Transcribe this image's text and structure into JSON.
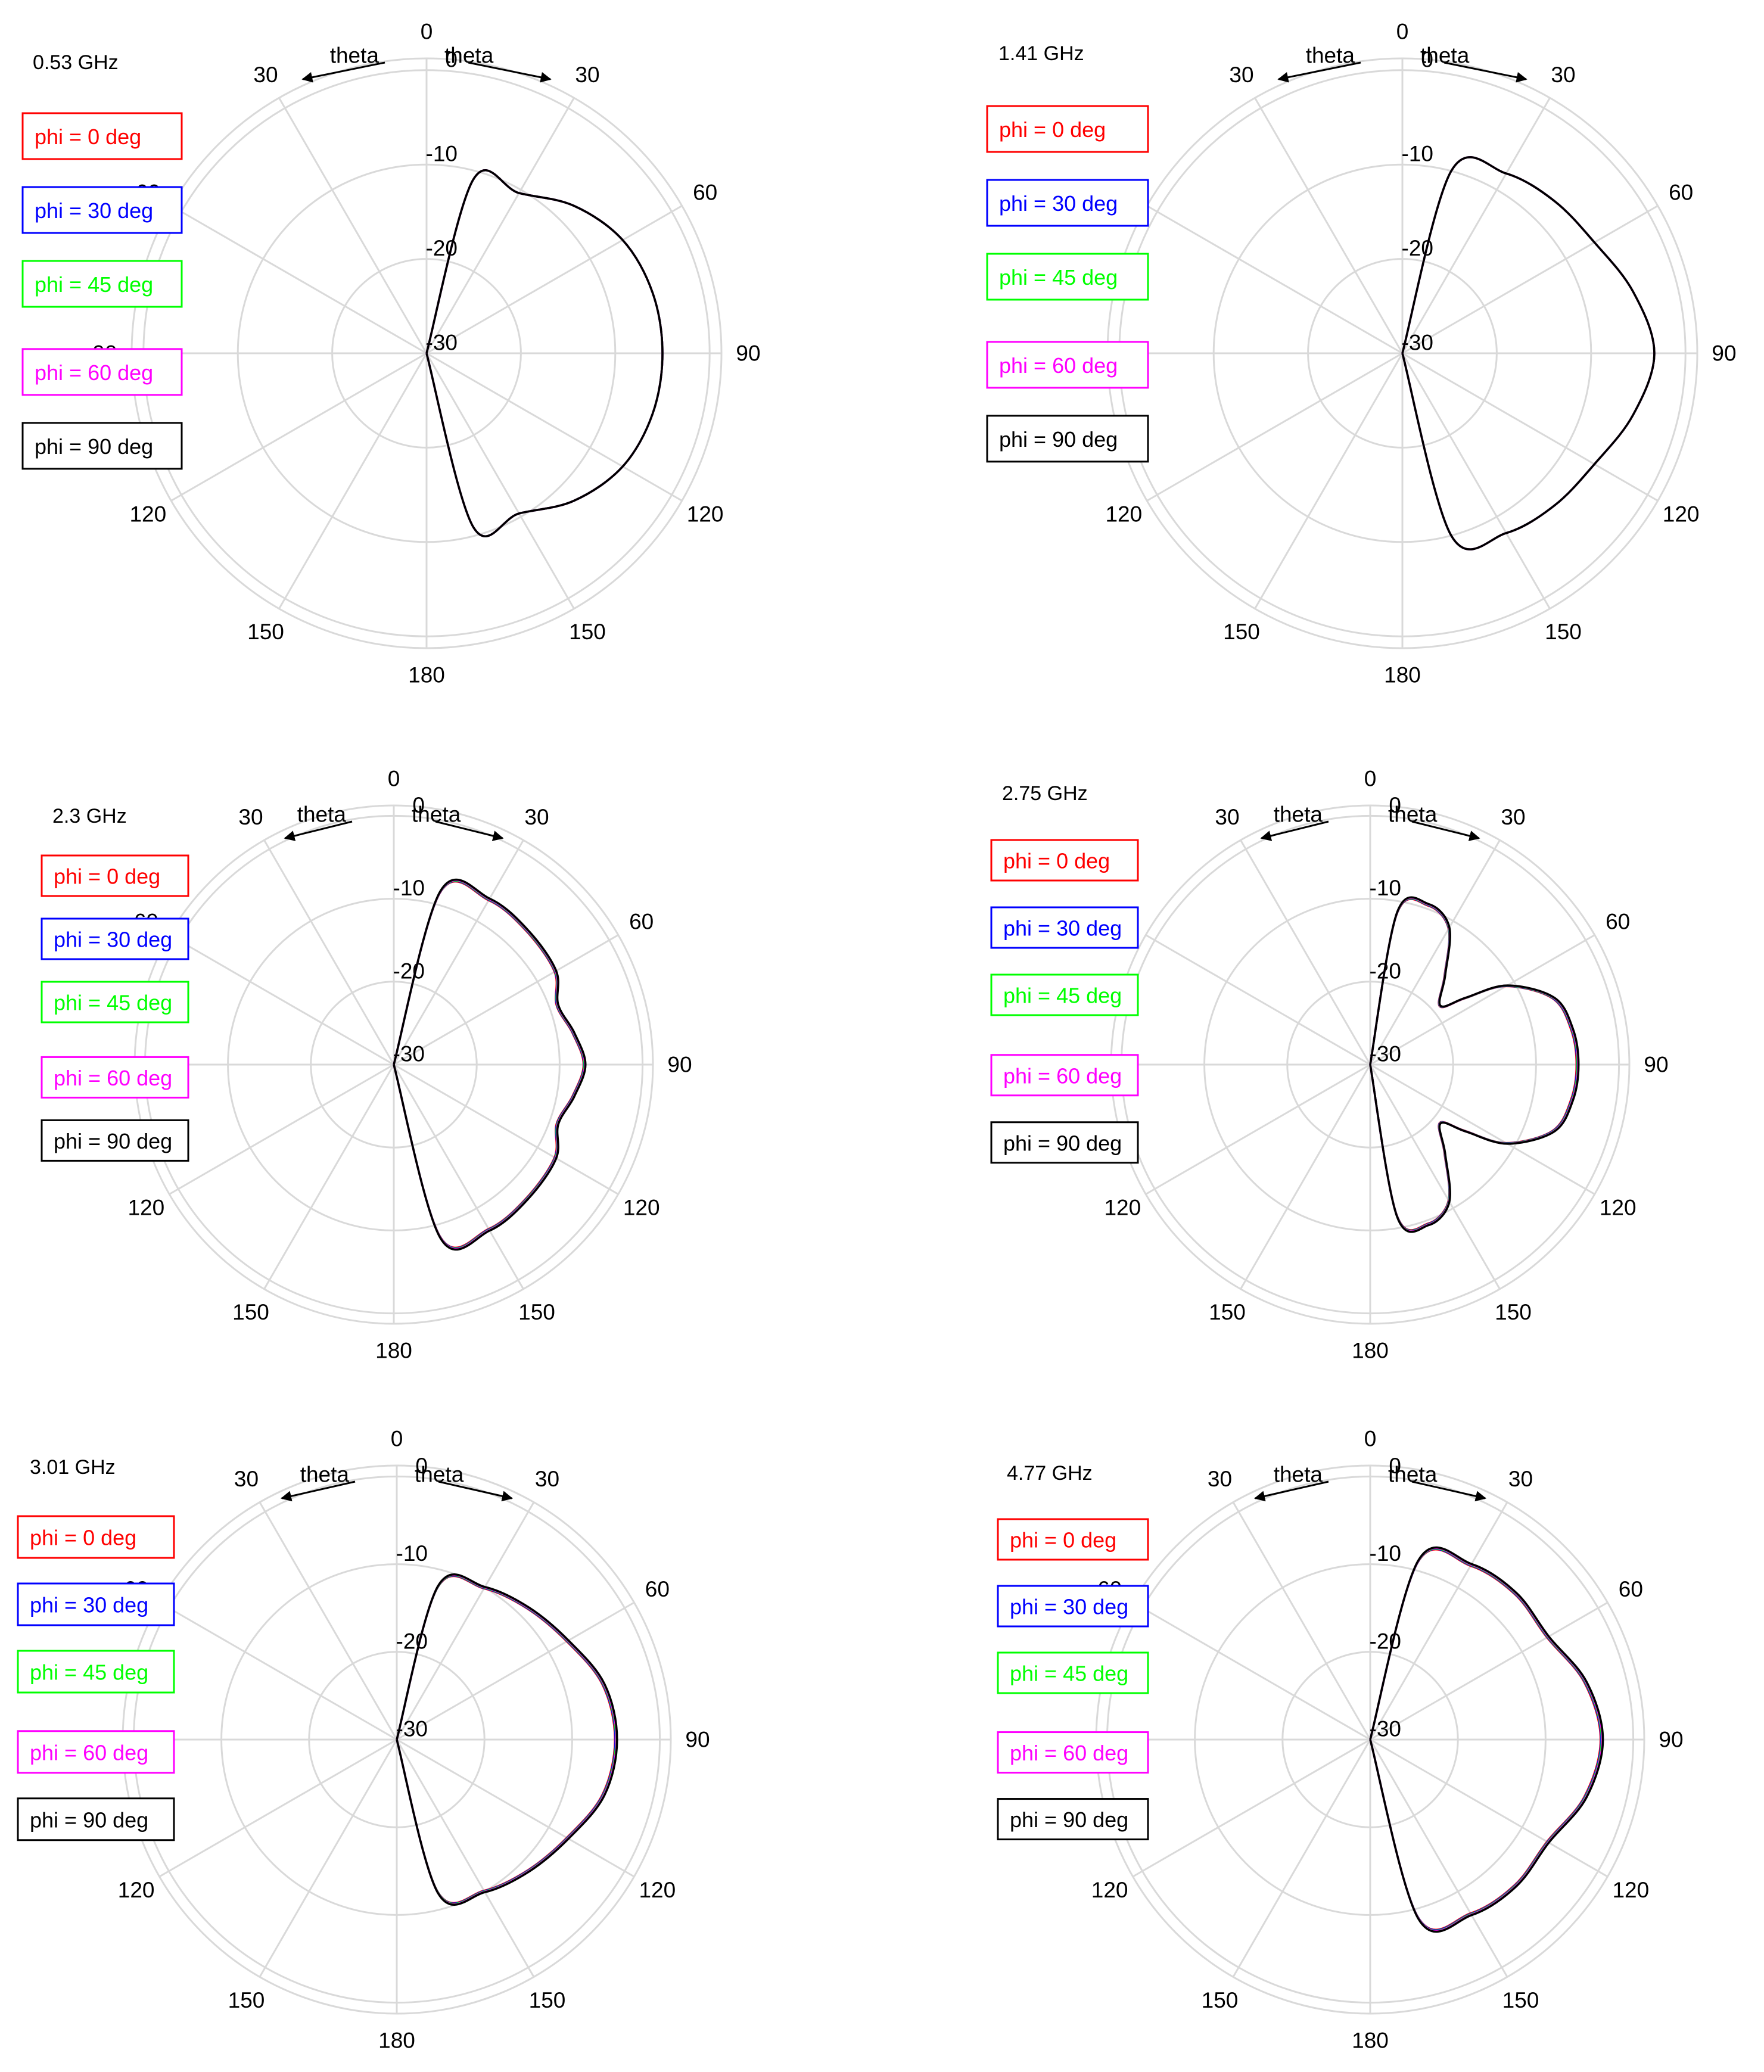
{
  "chart_data": [
    {
      "type": "polar-line",
      "title": "0.53 GHz",
      "angular_labels": [
        "0",
        "30",
        "60",
        "90",
        "120",
        "150",
        "180",
        "150",
        "120",
        "90",
        "60",
        "30"
      ],
      "radial_labels": [
        "0",
        "-10",
        "-20",
        "-30"
      ],
      "rlim": [
        -30,
        0
      ],
      "arrow_labels": [
        "theta",
        "theta"
      ],
      "grid": true,
      "legend_position": "left",
      "series": [
        {
          "name": "phi = 0  deg",
          "color": "#ff0000"
        },
        {
          "name": "phi = 30 deg",
          "color": "#0000ff"
        },
        {
          "name": "phi = 45 deg",
          "color": "#00ff00"
        },
        {
          "name": "phi = 60 deg",
          "color": "#ff00ff"
        },
        {
          "name": "phi = 90 deg",
          "color": "#000000"
        }
      ],
      "theta_deg": [
        0,
        15,
        30,
        45,
        60,
        75,
        90,
        105,
        120,
        135,
        150,
        165,
        180
      ],
      "gain_db": [
        -30.0,
        -11.0,
        -10.4,
        -7.9,
        -6.0,
        -5.2,
        -5.0,
        -5.2,
        -6.0,
        -7.9,
        -10.4,
        -11.0,
        -30.0
      ]
    },
    {
      "type": "polar-line",
      "title": "1.41 GHz",
      "angular_labels": [
        "0",
        "30",
        "60",
        "90",
        "120",
        "150",
        "180",
        "150",
        "120",
        "90",
        "60",
        "30"
      ],
      "radial_labels": [
        "0",
        "-10",
        "-20",
        "-30"
      ],
      "rlim": [
        -30,
        0
      ],
      "arrow_labels": [
        "theta",
        "theta"
      ],
      "grid": true,
      "legend_position": "left",
      "series": [
        {
          "name": "phi = 0  deg",
          "color": "#ff0000"
        },
        {
          "name": "phi = 30 deg",
          "color": "#0000ff"
        },
        {
          "name": "phi = 45 deg",
          "color": "#00ff00"
        },
        {
          "name": "phi = 60 deg",
          "color": "#ff00ff"
        },
        {
          "name": "phi = 90 deg",
          "color": "#000000"
        }
      ],
      "theta_deg": [
        0,
        15,
        30,
        45,
        60,
        75,
        90,
        105,
        120,
        135,
        150,
        165,
        180
      ],
      "gain_db": [
        -30.0,
        -10.0,
        -8.0,
        -7.2,
        -6.5,
        -4.7,
        -3.3,
        -4.7,
        -6.5,
        -7.2,
        -8.0,
        -10.0,
        -30.0
      ]
    },
    {
      "type": "polar-line",
      "title": "2.3 GHz",
      "angular_labels": [
        "0",
        "30",
        "60",
        "90",
        "120",
        "150",
        "180",
        "150",
        "120",
        "90",
        "60",
        "30"
      ],
      "radial_labels": [
        "0",
        "-10",
        "-20",
        "-30"
      ],
      "rlim": [
        -30,
        0
      ],
      "arrow_labels": [
        "theta",
        "theta"
      ],
      "grid": true,
      "legend_position": "left",
      "series": [
        {
          "name": "phi = 0  deg",
          "color": "#ff0000"
        },
        {
          "name": "phi = 30 deg",
          "color": "#0000ff"
        },
        {
          "name": "phi = 45 deg",
          "color": "#00ff00"
        },
        {
          "name": "phi = 60 deg",
          "color": "#ff00ff"
        },
        {
          "name": "phi = 90 deg",
          "color": "#000000"
        }
      ],
      "theta_deg": [
        0,
        15,
        30,
        45,
        60,
        70,
        80,
        90,
        100,
        110,
        120,
        135,
        150,
        165,
        180
      ],
      "gain_db": [
        -30.0,
        -8.5,
        -7.0,
        -7.2,
        -7.5,
        -9.0,
        -8.0,
        -7.0,
        -8.0,
        -9.0,
        -7.5,
        -7.2,
        -7.0,
        -8.5,
        -30.0
      ]
    },
    {
      "type": "polar-line",
      "title": "2.75 GHz",
      "angular_labels": [
        "0",
        "30",
        "60",
        "90",
        "120",
        "150",
        "180",
        "150",
        "120",
        "90",
        "60",
        "30"
      ],
      "radial_labels": [
        "0",
        "-10",
        "-20",
        "-30"
      ],
      "rlim": [
        -30,
        0
      ],
      "arrow_labels": [
        "theta",
        "theta"
      ],
      "grid": true,
      "legend_position": "left",
      "series": [
        {
          "name": "phi = 0  deg",
          "color": "#ff0000"
        },
        {
          "name": "phi = 30 deg",
          "color": "#0000ff"
        },
        {
          "name": "phi = 45 deg",
          "color": "#00ff00"
        },
        {
          "name": "phi = 60 deg",
          "color": "#ff00ff"
        },
        {
          "name": "phi = 90 deg",
          "color": "#000000"
        }
      ],
      "theta_deg": [
        0,
        10,
        20,
        30,
        40,
        50,
        55,
        60,
        70,
        80,
        90,
        100,
        110,
        120,
        125,
        130,
        140,
        150,
        160,
        170,
        180
      ],
      "gain_db": [
        -30.0,
        -11.5,
        -9.5,
        -11.0,
        -16.0,
        -19.0,
        -16.0,
        -11.0,
        -6.5,
        -5.3,
        -5.0,
        -5.3,
        -6.5,
        -11.0,
        -16.0,
        -19.0,
        -16.0,
        -11.0,
        -9.5,
        -11.5,
        -30.0
      ]
    },
    {
      "type": "polar-line",
      "title": "3.01 GHz",
      "angular_labels": [
        "0",
        "30",
        "60",
        "90",
        "120",
        "150",
        "180",
        "150",
        "120",
        "90",
        "60",
        "30"
      ],
      "radial_labels": [
        "0",
        "-10",
        "-20",
        "-30"
      ],
      "rlim": [
        -30,
        0
      ],
      "arrow_labels": [
        "theta",
        "theta"
      ],
      "grid": true,
      "legend_position": "left",
      "series": [
        {
          "name": "phi = 0  deg",
          "color": "#ff0000"
        },
        {
          "name": "phi = 30 deg",
          "color": "#0000ff"
        },
        {
          "name": "phi = 45 deg",
          "color": "#00ff00"
        },
        {
          "name": "phi = 60 deg",
          "color": "#ff00ff"
        },
        {
          "name": "phi = 90 deg",
          "color": "#000000"
        }
      ],
      "theta_deg": [
        0,
        15,
        30,
        45,
        60,
        75,
        90,
        105,
        120,
        135,
        150,
        165,
        180
      ],
      "gain_db": [
        -30.0,
        -12.0,
        -10.0,
        -8.8,
        -7.5,
        -5.6,
        -5.0,
        -5.6,
        -7.5,
        -8.8,
        -10.0,
        -12.0,
        -30.0
      ]
    },
    {
      "type": "polar-line",
      "title": "4.77 GHz",
      "angular_labels": [
        "0",
        "30",
        "60",
        "90",
        "120",
        "150",
        "180",
        "150",
        "120",
        "90",
        "60",
        "30"
      ],
      "radial_labels": [
        "0",
        "-10",
        "-20",
        "-30"
      ],
      "rlim": [
        -30,
        0
      ],
      "arrow_labels": [
        "theta",
        "theta"
      ],
      "grid": true,
      "legend_position": "left",
      "series": [
        {
          "name": "phi = 0  deg",
          "color": "#ff0000"
        },
        {
          "name": "phi = 30 deg",
          "color": "#0000ff"
        },
        {
          "name": "phi = 45 deg",
          "color": "#00ff00"
        },
        {
          "name": "phi = 60 deg",
          "color": "#ff00ff"
        },
        {
          "name": "phi = 90 deg",
          "color": "#000000"
        }
      ],
      "theta_deg": [
        0,
        15,
        30,
        45,
        60,
        75,
        90,
        105,
        120,
        135,
        150,
        165,
        180
      ],
      "gain_db": [
        -30.0,
        -9.0,
        -7.0,
        -6.5,
        -6.6,
        -4.6,
        -3.6,
        -4.6,
        -6.6,
        -6.5,
        -7.0,
        -9.0,
        -30.0
      ]
    }
  ]
}
